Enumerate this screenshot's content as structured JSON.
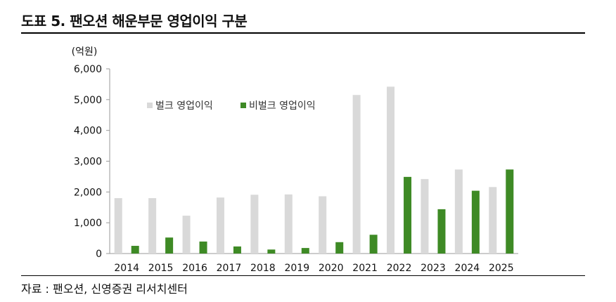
{
  "header": {
    "title": "도표 5. 팬오션 해운부문 영업이익 구분"
  },
  "footer": {
    "source": "자료 : 팬오션, 신영증권 리서치센터"
  },
  "chart_data": {
    "type": "bar",
    "unit_label": "(억원)",
    "categories": [
      "2014",
      "2015",
      "2016",
      "2017",
      "2018",
      "2019",
      "2020",
      "2021",
      "2022",
      "2023",
      "2024",
      "2025"
    ],
    "series": [
      {
        "name": "벌크 영업이익",
        "color": "#d9d9d9",
        "values": [
          1800,
          1800,
          1230,
          1820,
          1910,
          1920,
          1860,
          5150,
          5420,
          2420,
          2730,
          2160
        ]
      },
      {
        "name": "비벌크 영업이익",
        "color": "#3e8a25",
        "values": [
          250,
          520,
          390,
          230,
          130,
          180,
          370,
          610,
          2490,
          1440,
          2040,
          2730
        ]
      }
    ],
    "yticks": [
      "0",
      "1,000",
      "2,000",
      "3,000",
      "4,000",
      "5,000",
      "6,000"
    ],
    "ylim": [
      0,
      6000
    ],
    "legend_position": "upper-left",
    "grid": false
  }
}
